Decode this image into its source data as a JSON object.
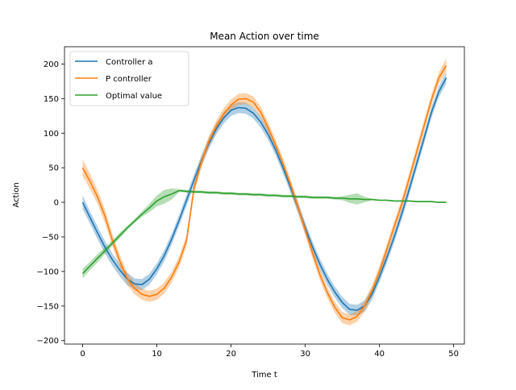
{
  "chart_data": {
    "type": "line",
    "title": "Mean Action over time",
    "xlabel": "Time t",
    "ylabel": "Action",
    "xlim": [
      -2.45,
      51.45
    ],
    "ylim": [
      -205,
      225
    ],
    "xticks": [
      0,
      10,
      20,
      30,
      40,
      50
    ],
    "yticks": [
      -200,
      -150,
      -100,
      -50,
      0,
      50,
      100,
      150,
      200
    ],
    "grid": false,
    "legend_position": "top-left",
    "series": [
      {
        "name": "Controller a",
        "color": "#1f77b4",
        "x": [
          0,
          1,
          2,
          3,
          4,
          5,
          6,
          7,
          8,
          9,
          10,
          11,
          12,
          13,
          14,
          15,
          16,
          17,
          18,
          19,
          20,
          21,
          22,
          23,
          24,
          25,
          26,
          27,
          28,
          29,
          30,
          31,
          32,
          33,
          34,
          35,
          36,
          37,
          38,
          39,
          40,
          41,
          42,
          43,
          44,
          45,
          46,
          47,
          48,
          49
        ],
        "y": [
          0,
          -22,
          -44,
          -65,
          -83,
          -98,
          -111,
          -118,
          -119,
          -111,
          -96,
          -77,
          -53,
          -26,
          3,
          32,
          60,
          85,
          106,
          122,
          133,
          137,
          136,
          129,
          116,
          98,
          76,
          50,
          22,
          -7,
          -37,
          -65,
          -90,
          -112,
          -130,
          -145,
          -155,
          -156,
          -150,
          -133,
          -108,
          -80,
          -50,
          -17,
          18,
          55,
          92,
          130,
          160,
          180
        ],
        "band": [
          10,
          9,
          9,
          9,
          9,
          9,
          9,
          8,
          8,
          8,
          8,
          8,
          8,
          8,
          8,
          8,
          8,
          8,
          8,
          8,
          8,
          8,
          8,
          8,
          8,
          8,
          8,
          8,
          8,
          8,
          8,
          8,
          8,
          8,
          8,
          8,
          8,
          8,
          8,
          8,
          8,
          8,
          8,
          8,
          8,
          8,
          8,
          8,
          8,
          8
        ]
      },
      {
        "name": "P controller",
        "color": "#ff7f0e",
        "x": [
          0,
          1,
          2,
          3,
          4,
          5,
          6,
          7,
          8,
          9,
          10,
          11,
          12,
          13,
          14,
          15,
          16,
          17,
          18,
          19,
          20,
          21,
          22,
          23,
          24,
          25,
          26,
          27,
          28,
          29,
          30,
          31,
          32,
          33,
          34,
          35,
          36,
          37,
          38,
          39,
          40,
          41,
          42,
          43,
          44,
          45,
          46,
          47,
          48,
          49
        ],
        "y": [
          50,
          30,
          8,
          -20,
          -55,
          -85,
          -110,
          -125,
          -133,
          -136,
          -133,
          -124,
          -108,
          -86,
          -55,
          20,
          58,
          88,
          110,
          128,
          141,
          149,
          150,
          145,
          130,
          108,
          83,
          56,
          26,
          -6,
          -40,
          -74,
          -105,
          -131,
          -152,
          -167,
          -170,
          -165,
          -150,
          -128,
          -100,
          -68,
          -35,
          -3,
          34,
          72,
          110,
          148,
          180,
          198
        ],
        "band": [
          12,
          11,
          10,
          10,
          9,
          9,
          9,
          8,
          8,
          8,
          8,
          8,
          8,
          8,
          8,
          8,
          8,
          8,
          8,
          8,
          8,
          8,
          8,
          8,
          8,
          8,
          8,
          8,
          8,
          8,
          8,
          8,
          8,
          8,
          8,
          8,
          8,
          8,
          8,
          8,
          8,
          8,
          8,
          8,
          8,
          8,
          8,
          8,
          8,
          10
        ]
      },
      {
        "name": "Optimal value",
        "color": "#2ca02c",
        "x": [
          0,
          1,
          2,
          3,
          4,
          5,
          6,
          7,
          8,
          9,
          10,
          11,
          12,
          13,
          14,
          15,
          16,
          17,
          18,
          19,
          20,
          21,
          22,
          23,
          24,
          25,
          26,
          27,
          28,
          29,
          30,
          31,
          32,
          33,
          34,
          35,
          36,
          37,
          38,
          39,
          40,
          41,
          42,
          43,
          44,
          45,
          46,
          47,
          48,
          49
        ],
        "y": [
          -103,
          -92,
          -81,
          -70,
          -59,
          -48,
          -37,
          -27,
          -17,
          -8,
          2,
          8,
          12,
          17,
          16,
          15,
          15,
          14,
          14,
          13,
          13,
          12,
          12,
          11,
          11,
          10,
          10,
          9,
          9,
          8,
          8,
          7,
          7,
          7,
          6,
          6,
          5,
          5,
          4,
          4,
          3,
          3,
          2,
          2,
          2,
          1,
          1,
          1,
          0,
          0
        ],
        "band": [
          7,
          6,
          6,
          5,
          4,
          4,
          3,
          3,
          4,
          6,
          8,
          10,
          8,
          2,
          2,
          2,
          2,
          2,
          2,
          2,
          2,
          2,
          2,
          2,
          2,
          2,
          2,
          2,
          2,
          2,
          2,
          2,
          2,
          2,
          2,
          3,
          6,
          8,
          4,
          1,
          1,
          1,
          1,
          1,
          1,
          1,
          1,
          1,
          1,
          1
        ]
      }
    ]
  }
}
